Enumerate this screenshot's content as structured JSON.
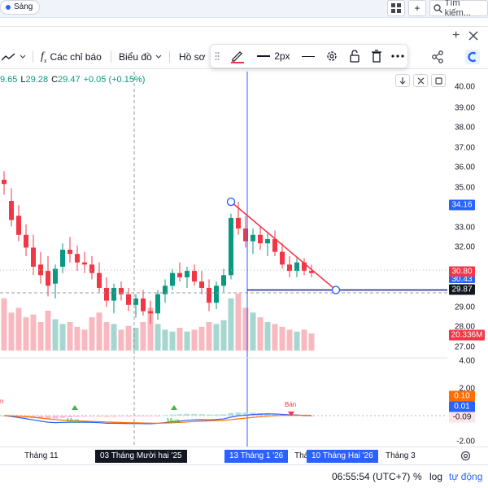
{
  "top": {
    "chip_label": "Sáng",
    "search_placeholder": "Tìm kiếm...",
    "plus_label": "+"
  },
  "toolbar": {
    "indicators_label": "Các chỉ báo",
    "chart_type_label": "Biểu đồ",
    "profile_label": "Hồ sơ",
    "line_width_label": "2px"
  },
  "legend": {
    "o_label": "",
    "o_value": "9.65",
    "l_label": "L",
    "l_value": "29.28",
    "c_label": "C",
    "c_value": "29.47",
    "change": "+0.05 (+0.15%)"
  },
  "colors": {
    "up": "#089981",
    "down": "#f23645",
    "accent": "#2962ff",
    "line_purple": "#2a2e9b",
    "macd": "#2962ff",
    "signal": "#ff6d00"
  },
  "price_axis": {
    "ticks": [
      "40.00",
      "39.00",
      "38.00",
      "37.00",
      "36.00",
      "35.00",
      "33.00",
      "32.00",
      "29.00",
      "28.00",
      "27.00"
    ],
    "tags": {
      "high": "34.16",
      "current": "30.80",
      "mid": "30.43",
      "crosshair": "29.87",
      "volume": "20.336M"
    },
    "osc_ticks": [
      "4.00",
      "2.00",
      "-2.00"
    ],
    "osc_tags": {
      "a": "0.10",
      "b": "0.01",
      "c": "-0.09"
    }
  },
  "time_axis": {
    "labels": [
      "Tháng 11",
      "Tháng 3"
    ],
    "selected_1": "03 Tháng Mười hai '25",
    "selected_2": "13 Tháng 1 '26",
    "selected_3": "10 Tháng Hai '26",
    "partial_label": "Thá"
  },
  "status": {
    "time": "06:55:54 (UTC+7)",
    "percent": "%",
    "log": "log",
    "auto": "tự động"
  },
  "signals": {
    "buy": "Mua",
    "sell": "Bán",
    "sell_left": "n"
  },
  "chart_data": {
    "type": "candlestick",
    "title": "",
    "series": [
      {
        "o": 35.2,
        "h": 35.6,
        "l": 34.5,
        "c": 35.0
      },
      {
        "o": 34.2,
        "h": 34.8,
        "l": 33.0,
        "c": 33.3
      },
      {
        "o": 33.5,
        "h": 34.0,
        "l": 32.3,
        "c": 32.6
      },
      {
        "o": 32.6,
        "h": 33.1,
        "l": 31.6,
        "c": 32.0
      },
      {
        "o": 32.0,
        "h": 32.6,
        "l": 30.7,
        "c": 31.1
      },
      {
        "o": 31.2,
        "h": 31.8,
        "l": 30.3,
        "c": 30.7
      },
      {
        "o": 30.9,
        "h": 31.6,
        "l": 29.7,
        "c": 30.2
      },
      {
        "o": 30.3,
        "h": 31.2,
        "l": 29.6,
        "c": 31.0
      },
      {
        "o": 31.1,
        "h": 32.2,
        "l": 30.8,
        "c": 31.9
      },
      {
        "o": 31.9,
        "h": 32.5,
        "l": 31.3,
        "c": 31.7
      },
      {
        "o": 31.7,
        "h": 32.1,
        "l": 30.9,
        "c": 31.3
      },
      {
        "o": 31.3,
        "h": 31.8,
        "l": 30.8,
        "c": 31.2
      },
      {
        "o": 31.2,
        "h": 31.6,
        "l": 30.5,
        "c": 30.8
      },
      {
        "o": 30.8,
        "h": 31.3,
        "l": 29.9,
        "c": 30.1
      },
      {
        "o": 30.1,
        "h": 30.6,
        "l": 29.2,
        "c": 29.5
      },
      {
        "o": 29.5,
        "h": 30.3,
        "l": 28.9,
        "c": 30.1
      },
      {
        "o": 30.1,
        "h": 30.4,
        "l": 29.5,
        "c": 29.8
      },
      {
        "o": 29.8,
        "h": 30.1,
        "l": 29.0,
        "c": 29.3
      },
      {
        "o": 29.3,
        "h": 29.8,
        "l": 28.7,
        "c": 29.6
      },
      {
        "o": 29.6,
        "h": 30.0,
        "l": 28.8,
        "c": 29.0
      },
      {
        "o": 29.0,
        "h": 29.5,
        "l": 28.4,
        "c": 28.9
      },
      {
        "o": 28.9,
        "h": 30.0,
        "l": 28.6,
        "c": 29.8
      },
      {
        "o": 29.8,
        "h": 30.5,
        "l": 29.4,
        "c": 30.2
      },
      {
        "o": 30.2,
        "h": 31.0,
        "l": 30.0,
        "c": 30.8
      },
      {
        "o": 30.8,
        "h": 31.3,
        "l": 30.4,
        "c": 30.6
      },
      {
        "o": 30.6,
        "h": 31.1,
        "l": 30.1,
        "c": 30.9
      },
      {
        "o": 30.9,
        "h": 31.2,
        "l": 30.2,
        "c": 30.4
      },
      {
        "o": 30.4,
        "h": 30.9,
        "l": 29.8,
        "c": 30.1
      },
      {
        "o": 30.1,
        "h": 30.5,
        "l": 29.0,
        "c": 29.4
      },
      {
        "o": 29.4,
        "h": 30.4,
        "l": 29.1,
        "c": 30.2
      },
      {
        "o": 30.2,
        "h": 31.0,
        "l": 29.9,
        "c": 30.7
      },
      {
        "o": 30.7,
        "h": 33.6,
        "l": 30.5,
        "c": 33.4
      },
      {
        "o": 33.4,
        "h": 34.16,
        "l": 32.6,
        "c": 32.9
      },
      {
        "o": 32.9,
        "h": 33.5,
        "l": 32.0,
        "c": 32.3
      },
      {
        "o": 32.3,
        "h": 32.9,
        "l": 31.7,
        "c": 32.6
      },
      {
        "o": 32.6,
        "h": 33.0,
        "l": 31.9,
        "c": 32.2
      },
      {
        "o": 32.2,
        "h": 32.7,
        "l": 31.6,
        "c": 32.4
      },
      {
        "o": 32.4,
        "h": 32.8,
        "l": 31.6,
        "c": 31.8
      },
      {
        "o": 31.8,
        "h": 32.2,
        "l": 31.0,
        "c": 31.2
      },
      {
        "o": 31.2,
        "h": 31.6,
        "l": 30.6,
        "c": 30.9
      },
      {
        "o": 30.9,
        "h": 31.5,
        "l": 30.6,
        "c": 31.3
      },
      {
        "o": 31.3,
        "h": 31.5,
        "l": 30.7,
        "c": 30.9
      },
      {
        "o": 30.9,
        "h": 31.2,
        "l": 30.6,
        "c": 30.8
      }
    ],
    "volume": [
      55,
      40,
      45,
      35,
      38,
      30,
      42,
      33,
      28,
      30,
      25,
      22,
      35,
      40,
      30,
      28,
      22,
      26,
      24,
      30,
      45,
      28,
      22,
      20,
      24,
      20,
      22,
      25,
      30,
      28,
      32,
      55,
      60,
      45,
      40,
      35,
      30,
      28,
      25,
      22,
      20,
      22,
      18
    ],
    "ylim": [
      26.8,
      40.3
    ],
    "trendline": {
      "from_price": 34.16,
      "to_price": 30.0
    },
    "horizontal_level": 30.0,
    "grid": false
  }
}
